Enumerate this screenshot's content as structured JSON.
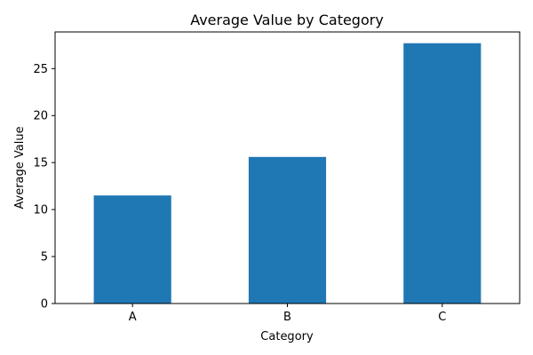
{
  "chart_data": {
    "type": "bar",
    "title": "Average Value by Category",
    "xlabel": "Category",
    "ylabel": "Average Value",
    "categories": [
      "A",
      "B",
      "C"
    ],
    "values": [
      11.5,
      15.6,
      27.7
    ],
    "ylim": [
      0,
      28.9
    ],
    "yticks": [
      0,
      5,
      10,
      15,
      20,
      25
    ],
    "grid": false,
    "bar_color": "#1f77b4"
  }
}
